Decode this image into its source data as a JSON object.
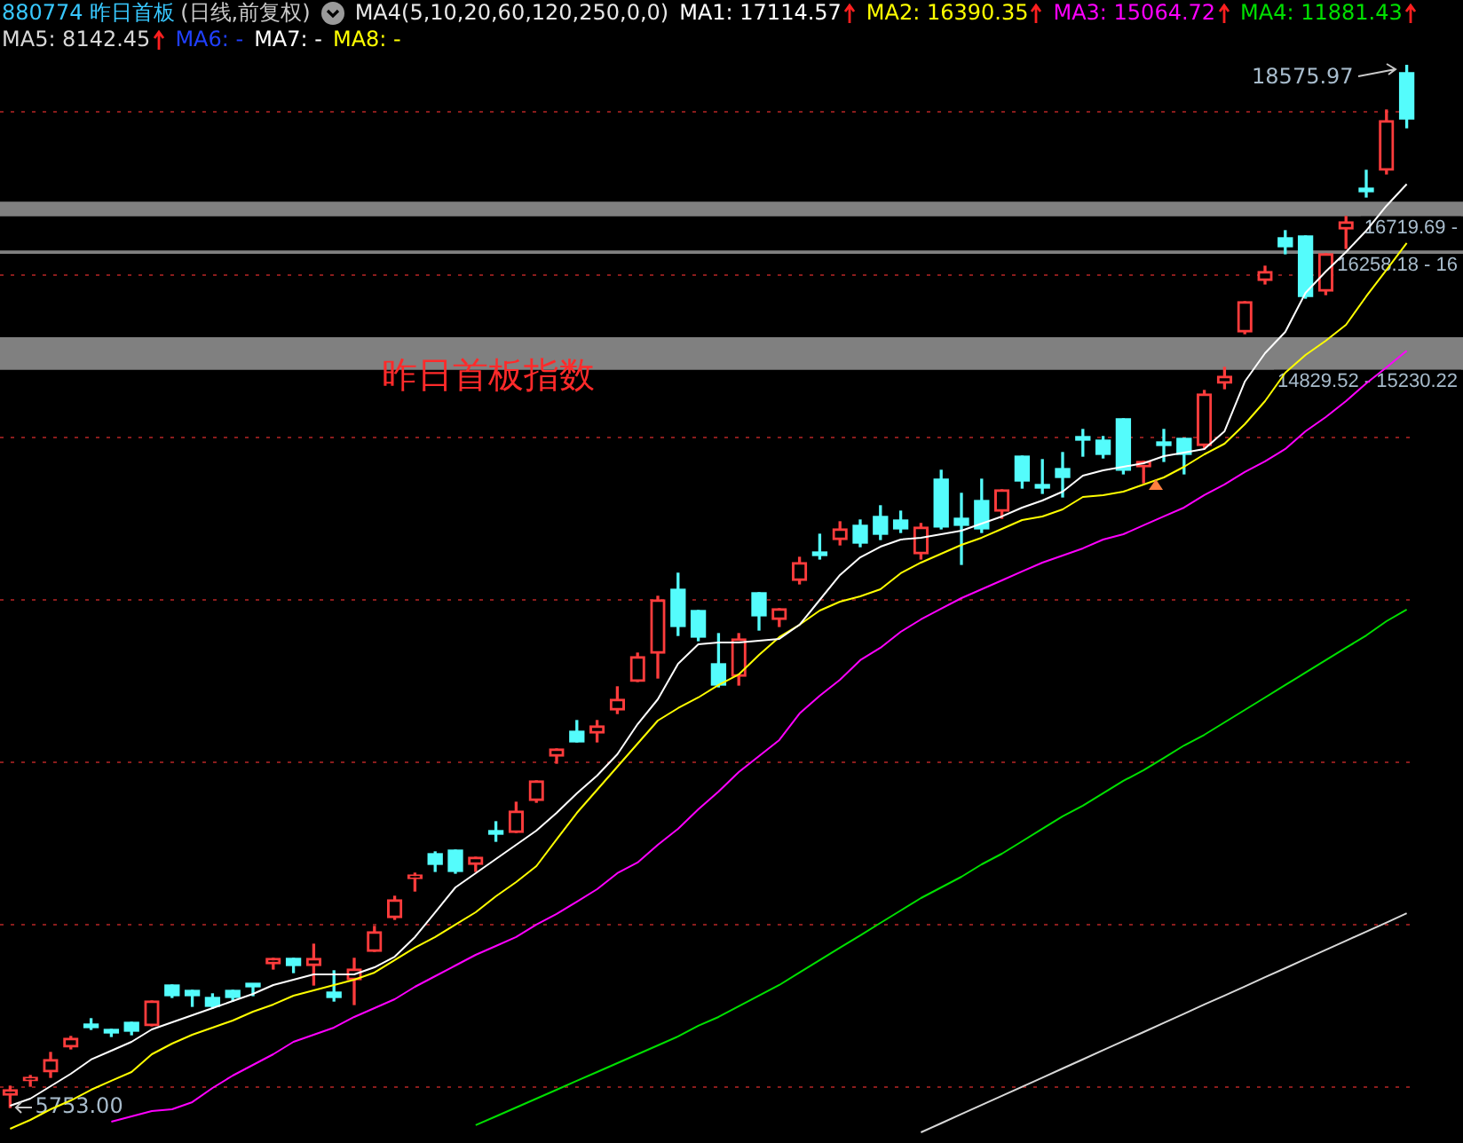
{
  "chart_data": {
    "type": "candlestick",
    "title": "880774 昨日首板",
    "subtitle": "(日线,前复权)",
    "legend_title": "MA4(5,10,20,60,120,250,0,0)",
    "categories": [
      null,
      null,
      null,
      null,
      null,
      null,
      null,
      null,
      null,
      null,
      null,
      null,
      null,
      null,
      null,
      null,
      null,
      null,
      null,
      null,
      null,
      null,
      null,
      null,
      null,
      null,
      null,
      null,
      null,
      null,
      null,
      null,
      null,
      null,
      null,
      null,
      null,
      null,
      null,
      null,
      null,
      null,
      null,
      null,
      null,
      null,
      null,
      null,
      null,
      null,
      null,
      null,
      null,
      null,
      null,
      null,
      null,
      null,
      null,
      null,
      null,
      null,
      null,
      null,
      null,
      null,
      null,
      null,
      null,
      null
    ],
    "ohlc": [
      [
        5906,
        6015,
        5753,
        5971
      ],
      [
        6081,
        6146,
        6015,
        6124
      ],
      [
        6190,
        6430,
        6124,
        6343
      ],
      [
        6496,
        6627,
        6474,
        6605
      ],
      [
        6779,
        6845,
        6714,
        6736
      ],
      [
        6714,
        6714,
        6627,
        6670
      ],
      [
        6801,
        6801,
        6648,
        6692
      ],
      [
        6758,
        7063,
        6758,
        7063
      ],
      [
        7260,
        7260,
        7107,
        7129
      ],
      [
        7194,
        7194,
        6998,
        7129
      ],
      [
        7107,
        7151,
        6976,
        6998
      ],
      [
        7194,
        7194,
        7063,
        7107
      ],
      [
        7260,
        7260,
        7129,
        7238
      ],
      [
        7522,
        7588,
        7457,
        7588
      ],
      [
        7588,
        7588,
        7413,
        7500
      ],
      [
        7500,
        7762,
        7260,
        7588
      ],
      [
        7173,
        7435,
        7063,
        7107
      ],
      [
        7325,
        7588,
        7020,
        7457
      ],
      [
        7675,
        7981,
        7675,
        7915
      ],
      [
        8090,
        8352,
        8068,
        8308
      ],
      [
        8570,
        8636,
        8417,
        8614
      ],
      [
        8876,
        8898,
        8658,
        8745
      ],
      [
        8920,
        8920,
        8636,
        8658
      ],
      [
        8745,
        8832,
        8658,
        8832
      ],
      [
        9160,
        9269,
        9029,
        9116
      ],
      [
        9138,
        9509,
        9138,
        9400
      ],
      [
        9531,
        9772,
        9509,
        9772
      ],
      [
        10077,
        10165,
        9990,
        10165
      ],
      [
        10383,
        10514,
        10252,
        10252
      ],
      [
        10361,
        10514,
        10252,
        10449
      ],
      [
        10645,
        10929,
        10601,
        10776
      ],
      [
        10995,
        11344,
        10995,
        11300
      ],
      [
        11344,
        12043,
        11038,
        11999
      ],
      [
        12130,
        12327,
        11562,
        11672
      ],
      [
        11868,
        11868,
        11497,
        11541
      ],
      [
        11213,
        11584,
        10929,
        10951
      ],
      [
        11060,
        11584,
        10951,
        11519
      ],
      [
        12087,
        12087,
        11628,
        11803
      ],
      [
        11759,
        11890,
        11672,
        11890
      ],
      [
        12239,
        12523,
        12196,
        12458
      ],
      [
        12567,
        12807,
        12502,
        12545
      ],
      [
        12742,
        12960,
        12676,
        12873
      ],
      [
        12917,
        12982,
        12654,
        12698
      ],
      [
        13026,
        13157,
        12742,
        12807
      ],
      [
        12982,
        13091,
        12829,
        12873
      ],
      [
        12567,
        12939,
        12502,
        12895
      ],
      [
        13484,
        13594,
        12873,
        12895
      ],
      [
        13004,
        13310,
        12436,
        12917
      ],
      [
        13222,
        13484,
        12829,
        12873
      ],
      [
        13091,
        13353,
        13004,
        13353
      ],
      [
        13768,
        13768,
        13375,
        13462
      ],
      [
        13419,
        13725,
        13310,
        13375
      ],
      [
        13615,
        13812,
        13266,
        13506
      ],
      [
        13987,
        14096,
        13768,
        13965
      ],
      [
        13965,
        14009,
        13746,
        13790
      ],
      [
        14227,
        14227,
        13550,
        13594
      ],
      [
        13637,
        13703,
        13440,
        13703
      ],
      [
        13943,
        14096,
        13703,
        13899
      ],
      [
        13987,
        13987,
        13550,
        13790
      ],
      [
        13899,
        14576,
        13856,
        14533
      ],
      [
        14664,
        14860,
        14598,
        14751
      ],
      [
        15297,
        15668,
        15275,
        15668
      ],
      [
        15930,
        16105,
        15887,
        16040
      ],
      [
        16455,
        16542,
        16258,
        16345
      ],
      [
        16477,
        16477,
        15712,
        15734
      ],
      [
        15799,
        16258,
        15756,
        16258
      ],
      [
        16564,
        16717,
        16324,
        16651
      ],
      [
        17044,
        17285,
        16957,
        17022
      ],
      [
        17285,
        18027,
        17241,
        17896
      ],
      [
        18486,
        18575.97,
        17809,
        17918
      ]
    ],
    "colors": [
      "#ff3c3c",
      "#ff3c3c",
      "#ff3c3c",
      "#ff3c3c",
      "#54fcfc",
      "#54fcfc",
      "#54fcfc",
      "#ff3c3c",
      "#54fcfc",
      "#54fcfc",
      "#54fcfc",
      "#54fcfc",
      "#54fcfc",
      "#ff3c3c",
      "#54fcfc",
      "#ff3c3c",
      "#54fcfc",
      "#ff3c3c",
      "#ff3c3c",
      "#ff3c3c",
      "#ff3c3c",
      "#54fcfc",
      "#54fcfc",
      "#ff3c3c",
      "#54fcfc",
      "#ff3c3c",
      "#ff3c3c",
      "#ff3c3c",
      "#54fcfc",
      "#ff3c3c",
      "#ff3c3c",
      "#ff3c3c",
      "#ff3c3c",
      "#54fcfc",
      "#54fcfc",
      "#54fcfc",
      "#ff3c3c",
      "#54fcfc",
      "#ff3c3c",
      "#ff3c3c",
      "#54fcfc",
      "#ff3c3c",
      "#54fcfc",
      "#54fcfc",
      "#54fcfc",
      "#ff3c3c",
      "#54fcfc",
      "#54fcfc",
      "#54fcfc",
      "#ff3c3c",
      "#54fcfc",
      "#54fcfc",
      "#54fcfc",
      "#54fcfc",
      "#54fcfc",
      "#54fcfc",
      "#ff3c3c",
      "#54fcfc",
      "#54fcfc",
      "#ff3c3c",
      "#ff3c3c",
      "#ff3c3c",
      "#ff3c3c",
      "#54fcfc",
      "#54fcfc",
      "#ff3c3c",
      "#ff3c3c",
      "#54fcfc",
      "#ff3c3c",
      "#54fcfc"
    ],
    "series": [
      {
        "name": "MA1: 17114.57",
        "type": "line",
        "color": "#ffffff",
        "values": [
          5775,
          5862,
          6015,
          6168,
          6343,
          6452,
          6561,
          6714,
          6801,
          6889,
          6976,
          7063,
          7151,
          7260,
          7325,
          7391,
          7391,
          7391,
          7478,
          7609,
          7850,
          8155,
          8461,
          8636,
          8811,
          8985,
          9160,
          9378,
          9619,
          9837,
          10099,
          10470,
          10776,
          11213,
          11453,
          11475,
          11475,
          11497,
          11519,
          11693,
          11999,
          12305,
          12523,
          12654,
          12742,
          12764,
          12807,
          12851,
          12938,
          13026,
          13135,
          13222,
          13331,
          13528,
          13594,
          13637,
          13681,
          13768,
          13812,
          13856,
          14074,
          14685,
          15035,
          15297,
          15778,
          16040,
          16280,
          16542,
          16848,
          17114.57
        ]
      },
      {
        "name": "MA2: 16390.35",
        "type": "line",
        "color": "#ffff00",
        "values": [
          5491,
          5600,
          5731,
          5840,
          5971,
          6081,
          6190,
          6408,
          6539,
          6648,
          6736,
          6823,
          6932,
          7020,
          7129,
          7194,
          7260,
          7325,
          7413,
          7566,
          7719,
          7850,
          8003,
          8155,
          8352,
          8527,
          8723,
          9051,
          9378,
          9662,
          9946,
          10230,
          10514,
          10667,
          10798,
          10951,
          11082,
          11322,
          11541,
          11693,
          11868,
          11977,
          12043,
          12130,
          12327,
          12458,
          12567,
          12676,
          12764,
          12873,
          12982,
          13026,
          13113,
          13266,
          13288,
          13331,
          13419,
          13506,
          13637,
          13790,
          13921,
          14161,
          14445,
          14795,
          15013,
          15188,
          15384,
          15734,
          16061,
          16390.35
        ]
      },
      {
        "name": "MA3: 15064.72",
        "type": "line",
        "color": "#ff00ff",
        "values": [
          null,
          null,
          null,
          null,
          null,
          5578,
          5644,
          5709,
          5731,
          5819,
          5993,
          6146,
          6277,
          6408,
          6561,
          6648,
          6736,
          6867,
          6976,
          7085,
          7238,
          7369,
          7500,
          7631,
          7740,
          7850,
          8003,
          8134,
          8286,
          8439,
          8636,
          8767,
          8985,
          9182,
          9422,
          9641,
          9881,
          10077,
          10274,
          10601,
          10820,
          11016,
          11257,
          11410,
          11606,
          11759,
          11890,
          12021,
          12130,
          12239,
          12349,
          12458,
          12545,
          12633,
          12742,
          12807,
          12917,
          13026,
          13135,
          13288,
          13419,
          13572,
          13703,
          13856,
          14074,
          14249,
          14445,
          14664,
          14860,
          15064.72
        ]
      },
      {
        "name": "MA4: 11881.43",
        "type": "line",
        "color": "#00e000",
        "values": [
          null,
          null,
          null,
          null,
          null,
          null,
          null,
          null,
          null,
          null,
          null,
          null,
          null,
          null,
          null,
          null,
          null,
          null,
          null,
          null,
          null,
          null,
          null,
          5535,
          5644,
          5753,
          5862,
          5971,
          6081,
          6190,
          6299,
          6408,
          6517,
          6627,
          6758,
          6867,
          6998,
          7129,
          7260,
          7413,
          7566,
          7719,
          7871,
          8024,
          8177,
          8330,
          8461,
          8592,
          8745,
          8876,
          9029,
          9182,
          9335,
          9466,
          9619,
          9772,
          9903,
          10055,
          10208,
          10339,
          10492,
          10645,
          10798,
          10951,
          11104,
          11257,
          11410,
          11562,
          11737,
          11881.43
        ]
      },
      {
        "name": "MA5: 8142.45",
        "type": "line",
        "color": "#d8d8d8",
        "values": [
          null,
          null,
          null,
          null,
          null,
          null,
          null,
          null,
          null,
          null,
          null,
          null,
          null,
          null,
          null,
          null,
          null,
          null,
          null,
          null,
          null,
          null,
          null,
          null,
          null,
          null,
          null,
          null,
          null,
          null,
          null,
          null,
          null,
          null,
          null,
          null,
          null,
          null,
          null,
          null,
          null,
          null,
          null,
          null,
          null,
          5447,
          5559,
          5672,
          5784,
          5897,
          6009,
          6120,
          6233,
          6345,
          6458,
          6570,
          6681,
          6795,
          6906,
          7020,
          7131,
          7242,
          7356,
          7467,
          7581,
          7692,
          7804,
          7917,
          8029,
          8142.45
        ]
      },
      {
        "name": "MA6: -",
        "type": "line",
        "color": "#2040ff",
        "values": [
          null,
          null,
          null,
          null,
          null,
          null,
          null,
          null,
          null,
          null,
          null,
          null,
          null,
          null,
          null,
          null,
          null,
          null,
          null,
          null,
          null,
          null,
          null,
          null,
          null,
          null,
          null,
          null,
          null,
          null,
          null,
          null,
          null,
          null,
          null,
          null,
          null,
          null,
          null,
          null,
          null,
          null,
          null,
          null,
          null,
          null,
          null,
          null,
          null,
          null,
          null,
          null,
          null,
          null,
          null,
          null,
          null,
          null,
          null,
          null,
          null,
          null,
          null,
          null,
          null,
          null,
          null,
          null,
          null,
          null
        ]
      },
      {
        "name": "MA7: -",
        "type": "line",
        "color": "#ffffff",
        "values": [
          null,
          null,
          null,
          null,
          null,
          null,
          null,
          null,
          null,
          null,
          null,
          null,
          null,
          null,
          null,
          null,
          null,
          null,
          null,
          null,
          null,
          null,
          null,
          null,
          null,
          null,
          null,
          null,
          null,
          null,
          null,
          null,
          null,
          null,
          null,
          null,
          null,
          null,
          null,
          null,
          null,
          null,
          null,
          null,
          null,
          null,
          null,
          null,
          null,
          null,
          null,
          null,
          null,
          null,
          null,
          null,
          null,
          null,
          null,
          null,
          null,
          null,
          null,
          null,
          null,
          null,
          null,
          null,
          null,
          null
        ]
      },
      {
        "name": "MA8: -",
        "type": "line",
        "color": "#ffff00",
        "values": [
          null,
          null,
          null,
          null,
          null,
          null,
          null,
          null,
          null,
          null,
          null,
          null,
          null,
          null,
          null,
          null,
          null,
          null,
          null,
          null,
          null,
          null,
          null,
          null,
          null,
          null,
          null,
          null,
          null,
          null,
          null,
          null,
          null,
          null,
          null,
          null,
          null,
          null,
          null,
          null,
          null,
          null,
          null,
          null,
          null,
          null,
          null,
          null,
          null,
          null,
          null,
          null,
          null,
          null,
          null,
          null,
          null,
          null,
          null,
          null,
          null,
          null,
          null,
          null,
          null,
          null,
          null,
          null,
          null,
          null
        ]
      }
    ],
    "ylim": [
      5316,
      19381
    ],
    "yticks": [
      {
        "value": 6000,
        "label": null
      },
      {
        "value": 8000,
        "label": null
      },
      {
        "value": 10000,
        "label": null
      },
      {
        "value": 12000,
        "label": null
      },
      {
        "value": 14000,
        "label": null
      },
      {
        "value": 16000,
        "label": null
      },
      {
        "value": 18000,
        "label": null
      }
    ],
    "grid": "y",
    "tick_labels": false,
    "legend": "top left",
    "marker": "none",
    "line_style": "solid",
    "bands": [
      {
        "axis": "y",
        "from": 14829.52,
        "to": 15230.22,
        "label": "14829.52 - 15230.22",
        "color": "#808080"
      },
      {
        "axis": "y",
        "from": 16719.69,
        "to": 16900,
        "label": "16719.69 -",
        "color": "#808080"
      },
      {
        "axis": "y",
        "from": 16258.18,
        "to": 16300,
        "label": "16258.18 - 16",
        "color": "#808080"
      }
    ],
    "annotations": [
      "昨日首板指数",
      "18575.97",
      "5753.00"
    ]
  }
}
